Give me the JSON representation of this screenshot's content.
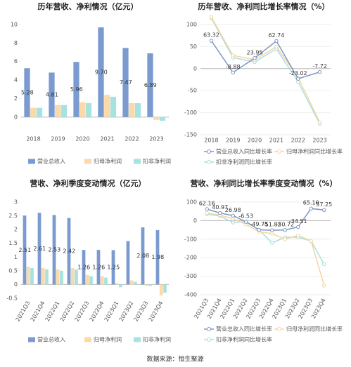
{
  "chart_data": [
    {
      "type": "bar",
      "title": "历年营收、净利情况（亿元）",
      "categories": [
        "2018",
        "2019",
        "2020",
        "2021",
        "2022",
        "2023"
      ],
      "series": [
        {
          "name": "营业总收入",
          "color": "#7b9bd0",
          "values": [
            5.28,
            4.81,
            5.96,
            9.7,
            7.47,
            6.89
          ],
          "value_labels": [
            "5.28",
            "4.81",
            "5.96",
            "9.70",
            "7.47",
            "6.89"
          ]
        },
        {
          "name": "归母净利润",
          "color": "#fbd9a8",
          "values": [
            1.0,
            1.3,
            1.6,
            2.4,
            1.5,
            -0.3
          ]
        },
        {
          "name": "扣非净利润",
          "color": "#a6e3e0",
          "values": [
            1.0,
            1.3,
            1.5,
            2.2,
            1.5,
            -0.4
          ]
        }
      ],
      "ylim": [
        -1,
        10
      ],
      "yticks": [
        0,
        2,
        4,
        6,
        8,
        10
      ],
      "grid": false
    },
    {
      "type": "line",
      "title": "历年营收、净利同比增长率情况（%）",
      "categories": [
        "2018",
        "2019",
        "2020",
        "2021",
        "2022",
        "2023"
      ],
      "series": [
        {
          "name": "营业总收入同比增长率",
          "color": "#7d96c4",
          "values": [
            63.32,
            -8.88,
            23.95,
            62.74,
            -23.02,
            -7.72
          ]
        },
        {
          "name": "归母净利润同比增长率",
          "color": "#f6d5a0",
          "values": [
            117,
            30,
            20,
            50,
            -20,
            -122
          ]
        },
        {
          "name": "扣非净利润同比增长率",
          "color": "#a8dfe0",
          "values": [
            115,
            25,
            15,
            45,
            -30,
            -125
          ]
        }
      ],
      "ylim": [
        -150,
        100
      ],
      "yticks": [
        -150,
        -100,
        -50,
        0,
        50,
        100
      ],
      "grid": true
    },
    {
      "type": "bar",
      "title": "营收、净利季度变动情况（亿元）",
      "categories": [
        "2021Q3",
        "2021Q4",
        "2022Q1",
        "2022Q2",
        "2022Q3",
        "2022Q4",
        "2023Q1",
        "2023Q2",
        "2023Q3",
        "2023Q4"
      ],
      "series": [
        {
          "name": "营业总收入",
          "color": "#7b9bd0",
          "values": [
            2.51,
            2.61,
            2.53,
            2.42,
            1.26,
            1.26,
            1.25,
            1.58,
            2.08,
            1.98
          ],
          "value_labels": [
            "2.51",
            "2.61",
            "2.53",
            "2.42",
            "1.26",
            "1.26",
            "1.25",
            null,
            "2.08",
            "1.98"
          ]
        },
        {
          "name": "归母净利润",
          "color": "#fbd9a8",
          "values": [
            0.65,
            0.6,
            0.55,
            0.6,
            0.35,
            0.3,
            0.05,
            0.15,
            -0.05,
            -0.4
          ]
        },
        {
          "name": "扣非净利润",
          "color": "#a6e3e0",
          "values": [
            0.6,
            0.55,
            0.5,
            0.55,
            0.3,
            0.25,
            -0.1,
            0.1,
            -0.05,
            -0.3
          ]
        }
      ],
      "ylim": [
        -0.5,
        3
      ],
      "yticks": [
        -0.5,
        0,
        0.5,
        1,
        1.5,
        2,
        2.5,
        3
      ],
      "grid": false
    },
    {
      "type": "line",
      "title": "营收、净利同比增长率季度变动情况（%）",
      "categories": [
        "2021Q3",
        "2021Q4",
        "2022Q1",
        "2022Q2",
        "2022Q3",
        "2022Q4",
        "2023Q1",
        "2023Q2",
        "2023Q3",
        "2023Q4"
      ],
      "series": [
        {
          "name": "营业总收入同比增长率",
          "color": "#7d96c4",
          "values": [
            62.16,
            40.97,
            26.98,
            -6.53,
            -49.75,
            -51.82,
            -50.72,
            -34.51,
            65.1,
            57.25
          ],
          "value_labels": [
            "62.16",
            "40.97",
            "26.98",
            "-6.53",
            "-49.75",
            "-51.82",
            "-50.72",
            "-34.51",
            "65.10",
            "57.25"
          ]
        },
        {
          "name": "归母净利润同比增长率",
          "color": "#f6d5a0",
          "values": [
            40,
            30,
            10,
            -20,
            -60,
            -70,
            -100,
            -80,
            -110,
            -350
          ]
        },
        {
          "name": "扣非净利润同比增长率",
          "color": "#a8dfe0",
          "values": [
            35,
            25,
            -10,
            -5,
            -50,
            -120,
            -90,
            -90,
            -110,
            -235
          ]
        }
      ],
      "ylim": [
        -400,
        100
      ],
      "yticks": [
        -400,
        -300,
        -200,
        -100,
        0,
        100
      ],
      "grid": true
    }
  ],
  "source": "数据来源：恒生聚源"
}
